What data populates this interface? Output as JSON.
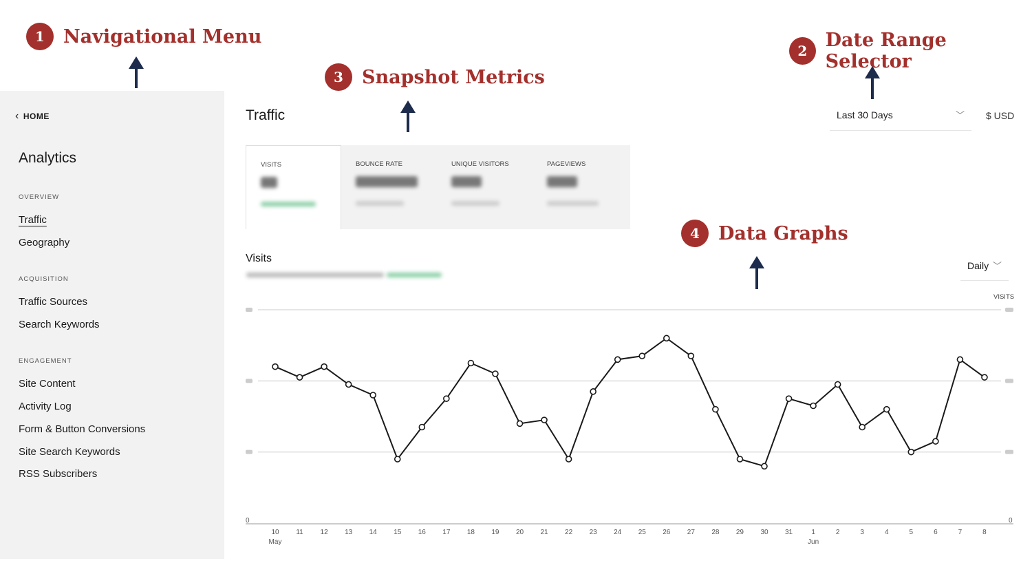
{
  "annotations": [
    {
      "number": "1",
      "label": "Navigational Menu"
    },
    {
      "number": "2",
      "label": "Date Range Selector"
    },
    {
      "number": "3",
      "label": "Snapshot Metrics"
    },
    {
      "number": "4",
      "label": "Data Graphs"
    }
  ],
  "sidebar": {
    "home": "HOME",
    "title": "Analytics",
    "sections": [
      {
        "label": "OVERVIEW",
        "items": [
          "Traffic",
          "Geography"
        ]
      },
      {
        "label": "ACQUISITION",
        "items": [
          "Traffic Sources",
          "Search Keywords"
        ]
      },
      {
        "label": "ENGAGEMENT",
        "items": [
          "Site Content",
          "Activity Log",
          "Form & Button Conversions",
          "Site Search Keywords",
          "RSS Subscribers"
        ]
      }
    ],
    "active": "Traffic"
  },
  "header": {
    "title": "Traffic",
    "date_range": "Last 30 Days",
    "currency": "$ USD"
  },
  "metrics": [
    "VISITS",
    "BOUNCE RATE",
    "UNIQUE VISITORS",
    "PAGEVIEWS"
  ],
  "graph": {
    "title": "Visits",
    "interval": "Daily",
    "axis_label": "VISITS"
  },
  "colors": {
    "annotation": "#a3302c",
    "arrow": "#1d2b4c",
    "positive": "#4caf78"
  },
  "chart_data": {
    "type": "line",
    "x": [
      "10",
      "11",
      "12",
      "13",
      "14",
      "15",
      "16",
      "17",
      "18",
      "19",
      "20",
      "21",
      "22",
      "23",
      "24",
      "25",
      "26",
      "27",
      "28",
      "29",
      "30",
      "31",
      "1",
      "2",
      "3",
      "4",
      "5",
      "6",
      "7",
      "8"
    ],
    "month_labels": {
      "10": "May",
      "1": "Jun"
    },
    "values": [
      44,
      41,
      44,
      39,
      36,
      18,
      27,
      35,
      45,
      42,
      28,
      29,
      18,
      37,
      46,
      47,
      52,
      47,
      32,
      18,
      16,
      35,
      33,
      39,
      27,
      32,
      20,
      23,
      46,
      41
    ],
    "ylim": [
      0,
      60
    ],
    "yticks_visible": [
      "0"
    ],
    "grid": true
  }
}
